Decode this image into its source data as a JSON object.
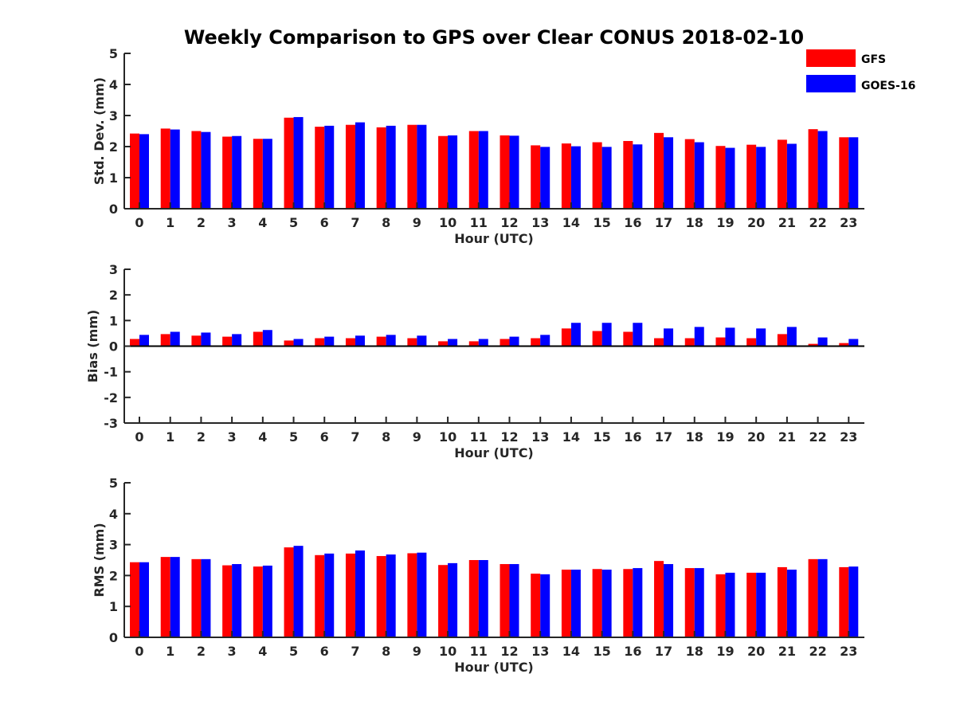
{
  "title": "Weekly Comparison to GPS over Clear CONUS 2018-02-10",
  "legend": {
    "placement": "top-right",
    "entries": [
      {
        "name": "GFS",
        "color": "#ff0000"
      },
      {
        "name": "GOES-16",
        "color": "#0000ff"
      }
    ]
  },
  "chart_data": [
    {
      "type": "bar",
      "ylabel": "Std. Dev. (mm)",
      "xlabel": "Hour (UTC)",
      "ylim": [
        0,
        5
      ],
      "yticks": [
        0,
        1,
        2,
        3,
        4,
        5
      ],
      "categories": [
        "0",
        "1",
        "2",
        "3",
        "4",
        "5",
        "6",
        "7",
        "8",
        "9",
        "10",
        "11",
        "12",
        "13",
        "14",
        "15",
        "16",
        "17",
        "18",
        "19",
        "20",
        "21",
        "22",
        "23"
      ],
      "series": [
        {
          "name": "GFS",
          "color": "#ff0000",
          "values": [
            2.42,
            2.58,
            2.5,
            2.32,
            2.25,
            2.93,
            2.64,
            2.7,
            2.62,
            2.7,
            2.34,
            2.5,
            2.36,
            2.04,
            2.1,
            2.14,
            2.18,
            2.44,
            2.24,
            2.02,
            2.06,
            2.22,
            2.56,
            2.3
          ]
        },
        {
          "name": "GOES-16",
          "color": "#0000ff",
          "values": [
            2.4,
            2.55,
            2.47,
            2.34,
            2.25,
            2.95,
            2.67,
            2.78,
            2.67,
            2.7,
            2.36,
            2.5,
            2.35,
            1.99,
            2.01,
            1.99,
            2.07,
            2.3,
            2.14,
            1.96,
            1.99,
            2.09,
            2.5,
            2.3
          ]
        }
      ]
    },
    {
      "type": "bar",
      "ylabel": "Bias (mm)",
      "xlabel": "Hour (UTC)",
      "ylim": [
        -3,
        3
      ],
      "yticks": [
        -3,
        -2,
        -1,
        0,
        1,
        2,
        3
      ],
      "categories": [
        "0",
        "1",
        "2",
        "3",
        "4",
        "5",
        "6",
        "7",
        "8",
        "9",
        "10",
        "11",
        "12",
        "13",
        "14",
        "15",
        "16",
        "17",
        "18",
        "19",
        "20",
        "21",
        "22",
        "23"
      ],
      "series": [
        {
          "name": "GFS",
          "color": "#ff0000",
          "values": [
            0.28,
            0.47,
            0.41,
            0.37,
            0.56,
            0.22,
            0.31,
            0.31,
            0.37,
            0.31,
            0.19,
            0.19,
            0.28,
            0.31,
            0.69,
            0.59,
            0.56,
            0.31,
            0.31,
            0.34,
            0.31,
            0.47,
            0.09,
            0.12
          ]
        },
        {
          "name": "GOES-16",
          "color": "#0000ff",
          "values": [
            0.44,
            0.56,
            0.53,
            0.47,
            0.63,
            0.28,
            0.37,
            0.41,
            0.44,
            0.41,
            0.28,
            0.28,
            0.37,
            0.44,
            0.91,
            0.91,
            0.91,
            0.69,
            0.75,
            0.72,
            0.69,
            0.75,
            0.34,
            0.28
          ]
        }
      ]
    },
    {
      "type": "bar",
      "ylabel": "RMS (mm)",
      "xlabel": "Hour (UTC)",
      "ylim": [
        0,
        5
      ],
      "yticks": [
        0,
        1,
        2,
        3,
        4,
        5
      ],
      "categories": [
        "0",
        "1",
        "2",
        "3",
        "4",
        "5",
        "6",
        "7",
        "8",
        "9",
        "10",
        "11",
        "12",
        "13",
        "14",
        "15",
        "16",
        "17",
        "18",
        "19",
        "20",
        "21",
        "22",
        "23"
      ],
      "series": [
        {
          "name": "GFS",
          "color": "#ff0000",
          "values": [
            2.43,
            2.6,
            2.53,
            2.33,
            2.29,
            2.91,
            2.66,
            2.71,
            2.63,
            2.72,
            2.34,
            2.5,
            2.37,
            2.06,
            2.19,
            2.21,
            2.21,
            2.47,
            2.24,
            2.04,
            2.09,
            2.27,
            2.53,
            2.27
          ]
        },
        {
          "name": "GOES-16",
          "color": "#0000ff",
          "values": [
            2.43,
            2.6,
            2.53,
            2.37,
            2.32,
            2.96,
            2.71,
            2.81,
            2.68,
            2.74,
            2.4,
            2.5,
            2.37,
            2.04,
            2.19,
            2.19,
            2.24,
            2.37,
            2.24,
            2.09,
            2.09,
            2.19,
            2.53,
            2.29
          ]
        }
      ]
    }
  ]
}
